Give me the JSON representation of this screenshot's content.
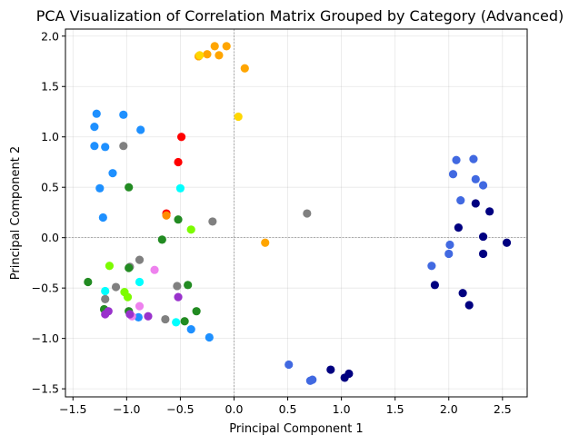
{
  "chart_data": {
    "type": "scatter",
    "title": "PCA Visualization of Correlation Matrix Grouped by Category (Advanced)",
    "xlabel": "Principal Component 1",
    "ylabel": "Principal Component 2",
    "xlim": [
      -1.57,
      2.73
    ],
    "ylim": [
      -1.58,
      2.07
    ],
    "xticks": [
      -1.5,
      -1.0,
      -0.5,
      0.0,
      0.5,
      1.0,
      1.5,
      2.0,
      2.5
    ],
    "yticks": [
      -1.5,
      -1.0,
      -0.5,
      0.0,
      0.5,
      1.0,
      1.5,
      2.0
    ],
    "xtick_labels": [
      "−1.5",
      "−1.0",
      "−0.5",
      "0.0",
      "0.5",
      "1.0",
      "1.5",
      "2.0",
      "2.5"
    ],
    "ytick_labels": [
      "−1.5",
      "−1.0",
      "−0.5",
      "0.0",
      "0.5",
      "1.0",
      "1.5",
      "2.0"
    ],
    "grid": true,
    "reference_lines": {
      "x": 0,
      "y": 0
    },
    "series": [
      {
        "color": "#ffa500",
        "points": [
          [
            -0.33,
            1.8
          ],
          [
            -0.25,
            1.82
          ],
          [
            -0.18,
            1.9
          ],
          [
            -0.14,
            1.81
          ],
          [
            -0.07,
            1.9
          ],
          [
            0.1,
            1.68
          ],
          [
            0.29,
            -0.05
          ]
        ]
      },
      {
        "color": "#ffd700",
        "points": [
          [
            -0.32,
            1.81
          ],
          [
            0.04,
            1.2
          ]
        ]
      },
      {
        "color": "#1e90ff",
        "points": [
          [
            -1.28,
            1.23
          ],
          [
            -1.3,
            1.1
          ],
          [
            -1.03,
            1.22
          ],
          [
            -0.87,
            1.07
          ],
          [
            -1.3,
            0.91
          ],
          [
            -1.2,
            0.9
          ],
          [
            -1.13,
            0.64
          ],
          [
            -1.25,
            0.49
          ],
          [
            -1.22,
            0.2
          ],
          [
            -0.89,
            -0.79
          ],
          [
            -0.4,
            -0.91
          ],
          [
            -0.23,
            -0.99
          ]
        ]
      },
      {
        "color": "#808080",
        "points": [
          [
            -1.03,
            0.91
          ],
          [
            -0.2,
            0.16
          ],
          [
            0.68,
            0.24
          ],
          [
            -0.88,
            -0.22
          ],
          [
            -0.97,
            -0.29
          ],
          [
            -1.1,
            -0.49
          ],
          [
            -0.53,
            -0.48
          ],
          [
            -1.2,
            -0.61
          ],
          [
            -0.64,
            -0.81
          ]
        ]
      },
      {
        "color": "#ff0000",
        "points": [
          [
            -0.49,
            1.0
          ],
          [
            -0.52,
            0.75
          ],
          [
            -0.63,
            0.24
          ]
        ]
      },
      {
        "color": "#00ffff",
        "points": [
          [
            -0.5,
            0.49
          ],
          [
            -1.2,
            -0.53
          ],
          [
            -0.88,
            -0.44
          ],
          [
            -0.54,
            -0.84
          ]
        ]
      },
      {
        "color": "#228b22",
        "points": [
          [
            -0.98,
            0.5
          ],
          [
            -0.52,
            0.18
          ],
          [
            -0.67,
            -0.02
          ],
          [
            -0.98,
            -0.3
          ],
          [
            -1.36,
            -0.44
          ],
          [
            -0.43,
            -0.47
          ],
          [
            -0.35,
            -0.73
          ],
          [
            -1.21,
            -0.71
          ],
          [
            -0.98,
            -0.73
          ],
          [
            -0.46,
            -0.83
          ]
        ]
      },
      {
        "color": "#7cfc00",
        "points": [
          [
            -0.4,
            0.08
          ],
          [
            -1.16,
            -0.28
          ],
          [
            -1.02,
            -0.54
          ],
          [
            -0.99,
            -0.59
          ]
        ]
      },
      {
        "color": "#ff8c00",
        "points": [
          [
            -0.63,
            0.22
          ]
        ]
      },
      {
        "color": "#ee82ee",
        "points": [
          [
            -0.74,
            -0.32
          ],
          [
            -0.88,
            -0.68
          ],
          [
            -0.95,
            -0.78
          ]
        ]
      },
      {
        "color": "#9932cc",
        "points": [
          [
            -0.52,
            -0.59
          ],
          [
            -1.17,
            -0.73
          ],
          [
            -1.2,
            -0.76
          ],
          [
            -0.97,
            -0.76
          ],
          [
            -0.8,
            -0.78
          ]
        ]
      },
      {
        "color": "#4169e1",
        "points": [
          [
            2.07,
            0.77
          ],
          [
            2.23,
            0.78
          ],
          [
            2.04,
            0.63
          ],
          [
            2.25,
            0.58
          ],
          [
            2.32,
            0.52
          ],
          [
            2.11,
            0.37
          ],
          [
            2.01,
            -0.07
          ],
          [
            2.0,
            -0.16
          ],
          [
            1.84,
            -0.28
          ],
          [
            0.51,
            -1.26
          ],
          [
            0.71,
            -1.42
          ],
          [
            0.73,
            -1.41
          ]
        ]
      },
      {
        "color": "#000080",
        "points": [
          [
            2.25,
            0.34
          ],
          [
            2.38,
            0.26
          ],
          [
            2.09,
            0.1
          ],
          [
            2.32,
            0.01
          ],
          [
            2.54,
            -0.05
          ],
          [
            2.32,
            -0.16
          ],
          [
            1.87,
            -0.47
          ],
          [
            2.13,
            -0.55
          ],
          [
            2.19,
            -0.67
          ],
          [
            0.9,
            -1.31
          ],
          [
            1.07,
            -1.35
          ],
          [
            1.03,
            -1.39
          ]
        ]
      }
    ]
  }
}
